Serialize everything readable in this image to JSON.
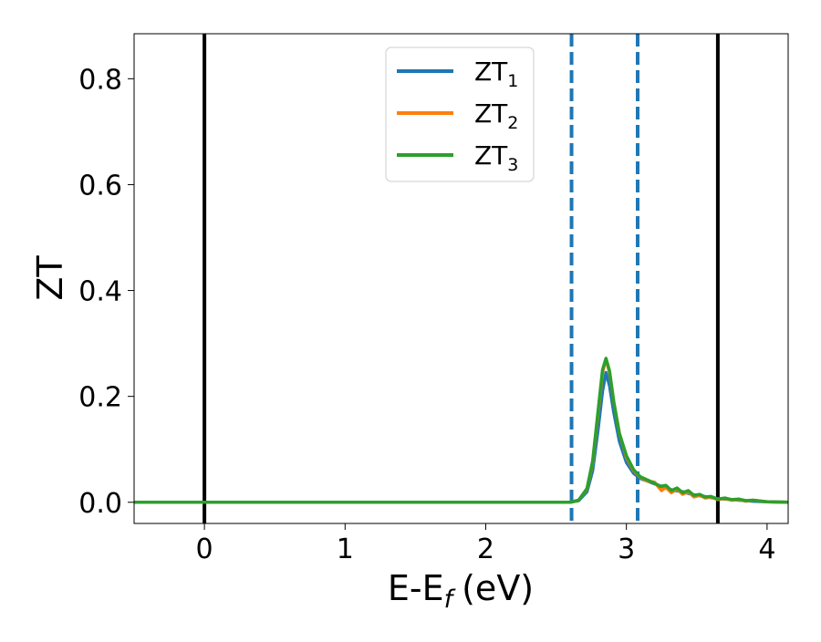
{
  "chart_data": {
    "type": "line",
    "title": "",
    "xlabel": "E-E",
    "xlabel_sub": "f",
    "xlabel_unit": "(eV)",
    "ylabel": "ZT",
    "xlim": [
      -0.5,
      4.15
    ],
    "ylim": [
      -0.04,
      0.885
    ],
    "xticks": [
      0,
      1,
      2,
      3,
      4
    ],
    "xtick_labels": [
      "0",
      "1",
      "2",
      "3",
      "4"
    ],
    "yticks": [
      0.0,
      0.2,
      0.4,
      0.6,
      0.8
    ],
    "ytick_labels": [
      "0.0",
      "0.2",
      "0.4",
      "0.6",
      "0.8"
    ],
    "grid": false,
    "legend_position": "top-center",
    "vertical_lines": [
      {
        "x": 0.0,
        "style": "solid",
        "color": "#000000"
      },
      {
        "x": 3.65,
        "style": "solid",
        "color": "#000000"
      },
      {
        "x": 2.61,
        "style": "dashed",
        "color": "#1f77b4"
      },
      {
        "x": 3.08,
        "style": "dashed",
        "color": "#1f77b4"
      }
    ],
    "series": [
      {
        "name": "ZT",
        "sub": "1",
        "color": "#1f77b4",
        "x": [
          -0.5,
          2.6,
          2.66,
          2.72,
          2.76,
          2.8,
          2.83,
          2.855,
          2.88,
          2.91,
          2.95,
          3.0,
          3.05,
          3.1,
          3.15,
          3.2,
          3.25,
          3.3,
          3.35,
          3.4,
          3.45,
          3.5,
          3.55,
          3.6,
          3.65,
          3.7,
          3.75,
          3.8,
          3.9,
          4.0,
          4.15
        ],
        "y": [
          0.0,
          0.0,
          0.003,
          0.02,
          0.06,
          0.14,
          0.21,
          0.245,
          0.22,
          0.17,
          0.115,
          0.075,
          0.055,
          0.045,
          0.04,
          0.035,
          0.03,
          0.025,
          0.022,
          0.02,
          0.016,
          0.013,
          0.011,
          0.009,
          0.007,
          0.006,
          0.005,
          0.004,
          0.002,
          0.001,
          0.0
        ]
      },
      {
        "name": "ZT",
        "sub": "2",
        "color": "#ff7f0e",
        "x": [
          -0.5,
          2.6,
          2.66,
          2.72,
          2.76,
          2.8,
          2.83,
          2.855,
          2.88,
          2.91,
          2.95,
          3.0,
          3.05,
          3.1,
          3.15,
          3.2,
          3.25,
          3.28,
          3.32,
          3.36,
          3.4,
          3.44,
          3.48,
          3.52,
          3.56,
          3.6,
          3.65,
          3.7,
          3.75,
          3.8,
          3.85,
          3.9,
          4.0,
          4.15
        ],
        "y": [
          0.0,
          0.0,
          0.004,
          0.025,
          0.075,
          0.17,
          0.245,
          0.27,
          0.245,
          0.19,
          0.13,
          0.085,
          0.06,
          0.047,
          0.04,
          0.038,
          0.022,
          0.028,
          0.018,
          0.025,
          0.015,
          0.02,
          0.01,
          0.013,
          0.008,
          0.01,
          0.005,
          0.007,
          0.004,
          0.005,
          0.002,
          0.004,
          0.001,
          0.0
        ]
      },
      {
        "name": "ZT",
        "sub": "3",
        "color": "#2ca02c",
        "x": [
          -0.5,
          2.6,
          2.66,
          2.72,
          2.76,
          2.8,
          2.83,
          2.855,
          2.88,
          2.91,
          2.95,
          3.0,
          3.05,
          3.1,
          3.15,
          3.2,
          3.24,
          3.28,
          3.32,
          3.36,
          3.4,
          3.44,
          3.48,
          3.52,
          3.56,
          3.6,
          3.65,
          3.7,
          3.75,
          3.8,
          3.85,
          3.9,
          4.0,
          4.15
        ],
        "y": [
          0.0,
          0.0,
          0.004,
          0.026,
          0.078,
          0.175,
          0.25,
          0.272,
          0.248,
          0.19,
          0.13,
          0.088,
          0.062,
          0.048,
          0.042,
          0.036,
          0.03,
          0.032,
          0.022,
          0.027,
          0.018,
          0.022,
          0.013,
          0.015,
          0.01,
          0.011,
          0.006,
          0.008,
          0.005,
          0.006,
          0.003,
          0.004,
          0.001,
          0.0
        ]
      }
    ]
  }
}
